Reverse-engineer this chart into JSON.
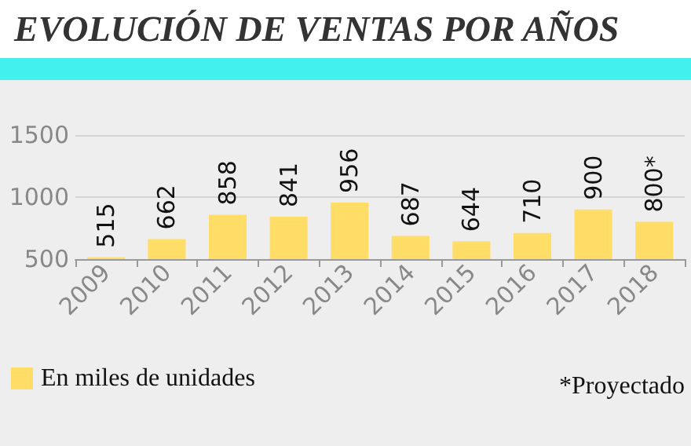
{
  "chart_data": {
    "type": "bar",
    "title": "EVOLUCIÓN DE VENTAS POR AÑOS",
    "categories": [
      "2009",
      "2010",
      "2011",
      "2012",
      "2013",
      "2014",
      "2015",
      "2016",
      "2017",
      "2018"
    ],
    "series": [
      {
        "name": "En miles de unidades",
        "color": "#ffdd66",
        "values": [
          515,
          662,
          858,
          841,
          956,
          687,
          644,
          710,
          900,
          800
        ],
        "value_labels": [
          "515",
          "662",
          "858",
          "841",
          "956",
          "687",
          "644",
          "710",
          "900",
          "800*"
        ]
      }
    ],
    "ylim": [
      500,
      1500
    ],
    "yticks": [
      500,
      1000,
      1500
    ],
    "grid": "y",
    "legend": "bottom left",
    "annotations": [
      "*Proyectado"
    ]
  }
}
